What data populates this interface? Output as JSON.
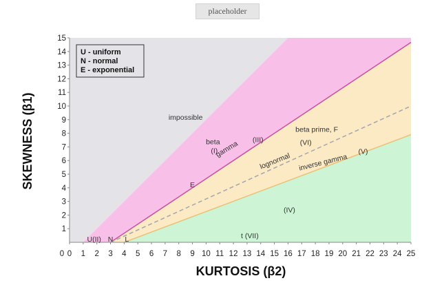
{
  "top_button": {
    "label": "placeholder"
  },
  "chart_data": {
    "type": "area",
    "xlabel": "KURTOSIS (β2)",
    "ylabel": "SKEWNESS (β1)",
    "xlim": [
      0,
      25
    ],
    "ylim": [
      0,
      15
    ],
    "x_ticks": [
      0,
      1,
      2,
      3,
      4,
      5,
      6,
      7,
      8,
      9,
      10,
      11,
      12,
      13,
      14,
      15,
      16,
      17,
      18,
      19,
      20,
      21,
      22,
      23,
      24,
      25
    ],
    "y_ticks": [
      0,
      1,
      2,
      3,
      4,
      5,
      6,
      7,
      8,
      9,
      10,
      11,
      12,
      13,
      14,
      15
    ],
    "grid": false,
    "legend_placement": "top-left",
    "legend": [
      "U - uniform",
      "N - normal",
      "E - exponential"
    ],
    "boundaries": [
      {
        "name": "impossible limit",
        "x": [
          1,
          16
        ],
        "y": [
          0,
          15
        ]
      },
      {
        "name": "gamma (III)",
        "x": [
          3,
          25
        ],
        "y": [
          0,
          14.667
        ]
      },
      {
        "name": "lognormal",
        "x": [
          3,
          25
        ],
        "y": [
          0,
          10
        ]
      },
      {
        "name": "inverse gamma (V)",
        "x": [
          3,
          4,
          25
        ],
        "y": [
          0,
          0,
          7.9
        ]
      }
    ],
    "regions": [
      {
        "name": "impossible",
        "color": "#e4e4e8"
      },
      {
        "name": "beta (I)",
        "color": "#f8bfe8"
      },
      {
        "name": "beta prime, F (VI)",
        "color": "#fbeac4"
      },
      {
        "name": "t (VII) / (IV)",
        "color": "#cdf5d5"
      }
    ],
    "boundary_colors": {
      "gamma": "#cc55aa",
      "lognormal": "#a8a8b0",
      "inverse_gamma": "#ecc27a"
    },
    "points": [
      {
        "label": "U(II)",
        "x": 1.8,
        "y": 0
      },
      {
        "label": "N",
        "x": 3,
        "y": 0
      },
      {
        "label": "L",
        "x": 4.2,
        "y": 0
      },
      {
        "label": "E",
        "x": 9,
        "y": 4
      }
    ],
    "annotations": [
      {
        "text": "impossible",
        "x": 8.5,
        "y": 9
      },
      {
        "text": "beta",
        "x": 10.5,
        "y": 7.2
      },
      {
        "text": "(I)",
        "x": 10.6,
        "y": 6.55
      },
      {
        "text": "gamma",
        "x": 11.6,
        "y": 6.7,
        "angle": -31
      },
      {
        "text": "(III)",
        "x": 13.8,
        "y": 7.35
      },
      {
        "text": "beta prime, F",
        "x": 18.1,
        "y": 8.1
      },
      {
        "text": "(VI)",
        "x": 17.3,
        "y": 7.15
      },
      {
        "text": "lognormal",
        "x": 15.1,
        "y": 5.8,
        "angle": -22
      },
      {
        "text": "inverse gamma",
        "x": 18.6,
        "y": 5.7,
        "angle": -14
      },
      {
        "text": "(V)",
        "x": 21.5,
        "y": 6.5
      },
      {
        "text": "(IV)",
        "x": 16.1,
        "y": 2.2
      },
      {
        "text": "t (VII)",
        "x": 13.2,
        "y": 0.3
      }
    ]
  }
}
